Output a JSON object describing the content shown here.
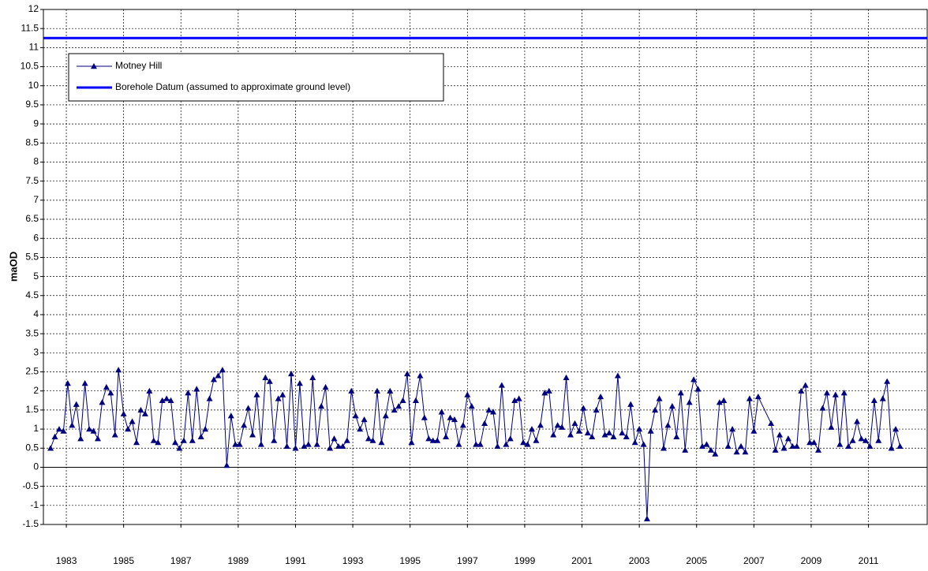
{
  "chart_data": {
    "type": "line",
    "y_label": "maOD",
    "xlim": [
      1982.2,
      2013.05
    ],
    "ylim": [
      -1.5,
      12
    ],
    "xticks": [
      1983,
      1985,
      1987,
      1989,
      1991,
      1993,
      1995,
      1997,
      1999,
      2001,
      2003,
      2005,
      2007,
      2009,
      2011
    ],
    "yticks": [
      -1.5,
      -1,
      -0.5,
      0,
      0.5,
      1,
      1.5,
      2,
      2.5,
      3,
      3.5,
      4,
      4.5,
      5,
      5.5,
      6,
      6.5,
      7,
      7.5,
      8,
      8.5,
      9,
      9.5,
      10,
      10.5,
      11,
      11.5,
      12
    ],
    "grid": true,
    "legend": "upper left",
    "series": [
      {
        "name": "Motney Hill",
        "color": "#000080",
        "marker": "triangle",
        "x": [
          1982.45,
          1982.6,
          1982.75,
          1982.9,
          1983.05,
          1983.2,
          1983.35,
          1983.5,
          1983.65,
          1983.8,
          1983.95,
          1984.1,
          1984.25,
          1984.4,
          1984.55,
          1984.7,
          1984.82,
          1985.0,
          1985.15,
          1985.3,
          1985.45,
          1985.6,
          1985.75,
          1985.9,
          1986.05,
          1986.2,
          1986.35,
          1986.5,
          1986.65,
          1986.8,
          1986.95,
          1987.1,
          1987.25,
          1987.4,
          1987.55,
          1987.7,
          1987.85,
          1988.0,
          1988.15,
          1988.3,
          1988.45,
          1988.6,
          1988.75,
          1988.9,
          1989.05,
          1989.2,
          1989.35,
          1989.5,
          1989.65,
          1989.8,
          1989.95,
          1990.1,
          1990.25,
          1990.4,
          1990.55,
          1990.7,
          1990.85,
          1991.0,
          1991.15,
          1991.3,
          1991.45,
          1991.6,
          1991.75,
          1991.9,
          1992.05,
          1992.2,
          1992.35,
          1992.5,
          1992.65,
          1992.8,
          1992.95,
          1993.1,
          1993.25,
          1993.4,
          1993.55,
          1993.7,
          1993.85,
          1994.0,
          1994.15,
          1994.3,
          1994.45,
          1994.6,
          1994.75,
          1994.9,
          1995.05,
          1995.2,
          1995.35,
          1995.5,
          1995.65,
          1995.8,
          1995.95,
          1996.1,
          1996.25,
          1996.4,
          1996.55,
          1996.7,
          1996.85,
          1997.0,
          1997.15,
          1997.3,
          1997.45,
          1997.6,
          1997.75,
          1997.9,
          1998.05,
          1998.2,
          1998.35,
          1998.5,
          1998.65,
          1998.8,
          1998.95,
          1999.1,
          1999.25,
          1999.4,
          1999.55,
          1999.7,
          1999.85,
          2000.0,
          2000.15,
          2000.3,
          2000.45,
          2000.6,
          2000.75,
          2000.9,
          2001.05,
          2001.2,
          2001.35,
          2001.5,
          2001.65,
          2001.8,
          2001.95,
          2002.1,
          2002.25,
          2002.4,
          2002.55,
          2002.7,
          2002.85,
          2003.0,
          2003.15,
          2003.27,
          2003.4,
          2003.55,
          2003.7,
          2003.85,
          2004.0,
          2004.15,
          2004.3,
          2004.45,
          2004.6,
          2004.75,
          2004.9,
          2005.05,
          2005.2,
          2005.35,
          2005.5,
          2005.65,
          2005.8,
          2005.95,
          2006.1,
          2006.25,
          2006.4,
          2006.55,
          2006.7,
          2006.85,
          2007.0,
          2007.15,
          2007.6,
          2007.75,
          2007.9,
          2008.05,
          2008.2,
          2008.35,
          2008.5,
          2008.65,
          2008.8,
          2008.95,
          2009.1,
          2009.25,
          2009.4,
          2009.55,
          2009.7,
          2009.85,
          2010.0,
          2010.15,
          2010.3,
          2010.45,
          2010.6,
          2010.75,
          2010.9,
          2011.05,
          2011.2,
          2011.35,
          2011.5,
          2011.65,
          2011.8,
          2011.95,
          2012.1
        ],
        "values": [
          0.5,
          0.8,
          1.0,
          0.95,
          2.2,
          1.1,
          1.65,
          0.75,
          2.2,
          1.0,
          0.95,
          0.75,
          1.7,
          2.1,
          1.95,
          0.85,
          2.55,
          1.4,
          1.0,
          1.2,
          0.65,
          1.5,
          1.4,
          2.0,
          0.7,
          0.65,
          1.75,
          1.8,
          1.75,
          0.65,
          0.5,
          0.7,
          1.95,
          0.7,
          2.05,
          0.8,
          1.0,
          1.8,
          2.3,
          2.4,
          2.55,
          0.05,
          1.35,
          0.6,
          0.6,
          1.1,
          1.55,
          0.85,
          1.9,
          0.6,
          2.35,
          2.25,
          0.7,
          1.8,
          1.9,
          0.55,
          2.45,
          0.5,
          2.2,
          0.55,
          0.6,
          2.35,
          0.6,
          1.6,
          2.1,
          0.5,
          0.75,
          0.55,
          0.55,
          0.7,
          2.0,
          1.35,
          1.0,
          1.25,
          0.75,
          0.7,
          2.0,
          0.65,
          1.35,
          2.0,
          1.5,
          1.6,
          1.75,
          2.45,
          0.65,
          1.75,
          2.4,
          1.3,
          0.75,
          0.7,
          0.7,
          1.45,
          0.8,
          1.3,
          1.25,
          0.6,
          1.1,
          1.9,
          1.6,
          0.6,
          0.6,
          1.15,
          1.5,
          1.45,
          0.55,
          2.15,
          0.6,
          0.75,
          1.75,
          1.8,
          0.65,
          0.6,
          1.0,
          0.7,
          1.1,
          1.95,
          2.0,
          0.85,
          1.1,
          1.05,
          2.35,
          0.85,
          1.15,
          0.95,
          1.55,
          0.9,
          0.8,
          1.5,
          1.85,
          0.85,
          0.9,
          0.8,
          2.4,
          0.9,
          0.8,
          1.65,
          0.65,
          1.0,
          0.6,
          -1.35,
          0.95,
          1.5,
          1.8,
          0.5,
          1.1,
          1.6,
          0.8,
          1.95,
          0.45,
          1.7,
          2.3,
          2.05,
          0.55,
          0.6,
          0.45,
          0.35,
          1.7,
          1.75,
          0.55,
          1.0,
          0.4,
          0.55,
          0.4,
          1.8,
          0.95,
          1.85,
          1.15,
          0.45,
          0.85,
          0.5,
          0.75,
          0.55,
          0.55,
          2.0,
          2.15,
          0.65,
          0.65,
          0.45,
          1.55,
          1.95,
          1.05,
          1.9,
          0.6,
          1.95,
          0.55,
          0.7,
          1.2,
          0.75,
          0.7,
          0.55,
          1.75,
          0.7,
          1.8,
          2.25,
          0.5,
          1.0,
          0.55
        ]
      },
      {
        "name": "Borehole Datum (assumed to approximate ground level)",
        "color": "#0000ff",
        "marker": "none",
        "x": [
          1982.2,
          2013.05
        ],
        "values": [
          11.25,
          11.25
        ]
      }
    ]
  }
}
